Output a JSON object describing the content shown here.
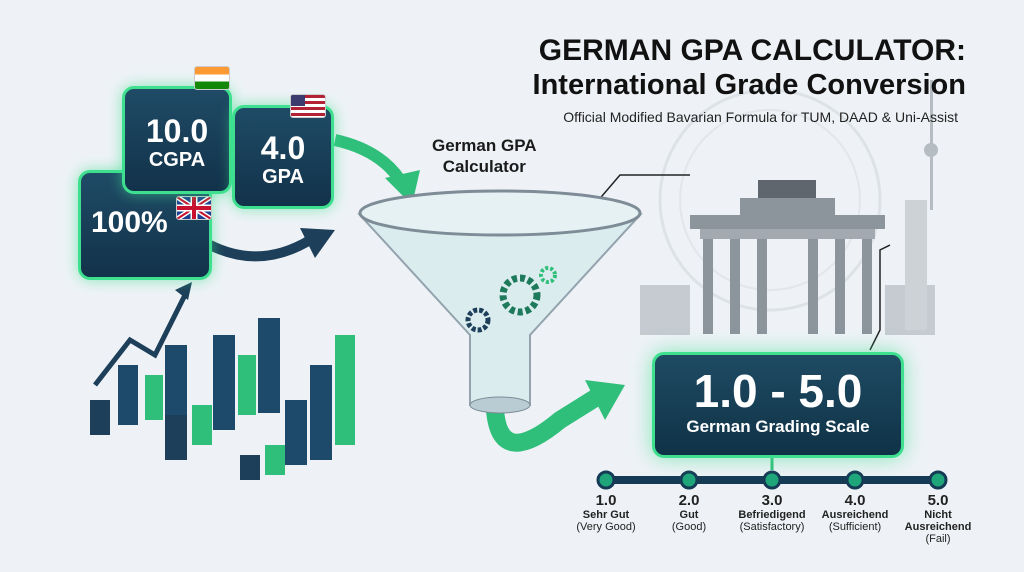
{
  "header": {
    "title": "GERMAN GPA CALCULATOR:",
    "subtitle": "International Grade Conversion",
    "tagline": "Official Modified Bavarian Formula for TUM, DAAD & Uni-Assist"
  },
  "cards": [
    {
      "value": "10.0",
      "label": "CGPA",
      "flag": "india-flag-icon"
    },
    {
      "value": "4.0",
      "label": "GPA",
      "flag": "usa-flag-icon"
    },
    {
      "value": "100%",
      "label": "",
      "flag": "uk-flag-icon"
    }
  ],
  "funnel": {
    "label_line1": "German GPA",
    "label_line2": "Calculator"
  },
  "scale": {
    "range": "1.0 - 5.0",
    "label": "German Grading Scale"
  },
  "grades": [
    {
      "grade": "1.0",
      "german": "Sehr Gut",
      "english": "(Very Good)"
    },
    {
      "grade": "2.0",
      "german": "Gut",
      "english": "(Good)"
    },
    {
      "grade": "3.0",
      "german": "Befriedigend",
      "english": "(Satisfactory)"
    },
    {
      "grade": "4.0",
      "german": "Ausreichend",
      "english": "(Sufficient)"
    },
    {
      "grade": "5.0",
      "german": "Nicht Ausreichend",
      "english": "(Fail)"
    }
  ],
  "colors": {
    "accent": "#2fbf7a",
    "navy": "#12324a",
    "background": "#eef2f6"
  }
}
